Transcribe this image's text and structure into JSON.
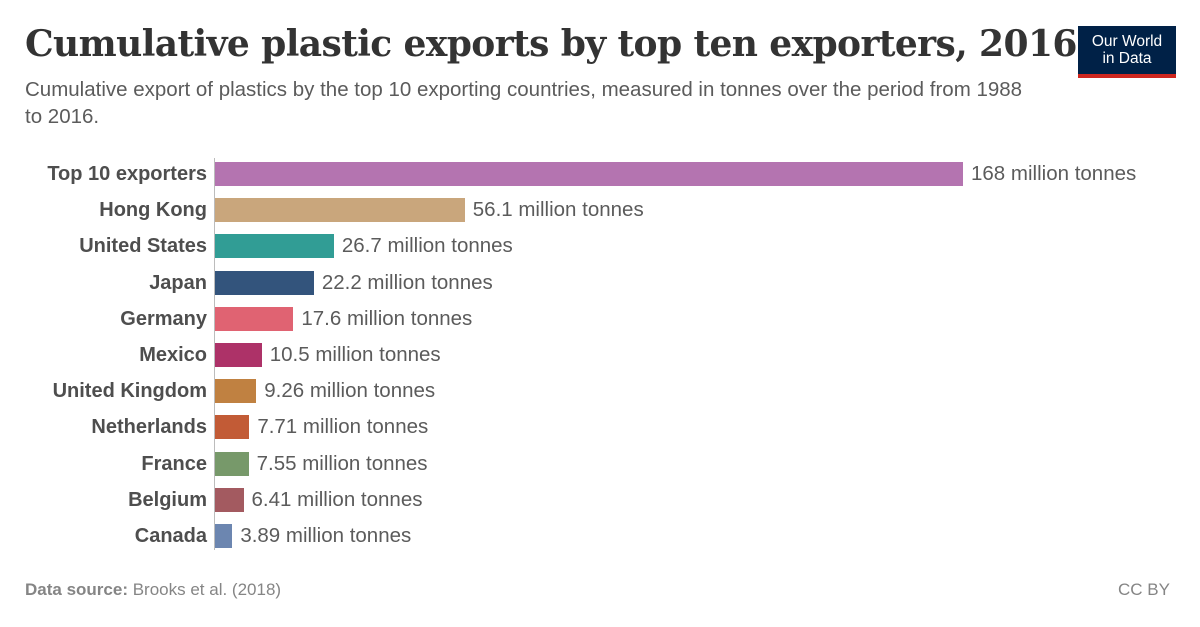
{
  "header": {
    "title": "Cumulative plastic exports by top ten exporters, 2016",
    "subtitle": "Cumulative export of plastics by the top 10 exporting countries, measured in tonnes over the period from 1988 to 2016.",
    "logo_line1": "Our World",
    "logo_line2": "in Data"
  },
  "footer": {
    "source_label": "Data source:",
    "source_value": "Brooks et al. (2018)",
    "license": "CC BY"
  },
  "chart_data": {
    "type": "bar",
    "orientation": "horizontal",
    "title": "Cumulative plastic exports by top ten exporters, 2016",
    "subtitle": "Cumulative export of plastics by the top 10 exporting countries, measured in tonnes over the period from 1988 to 2016.",
    "xlabel": "",
    "ylabel": "",
    "unit": "million tonnes",
    "grid": false,
    "legend": null,
    "categories": [
      "Top 10 exporters",
      "Hong Kong",
      "United States",
      "Japan",
      "Germany",
      "Mexico",
      "United Kingdom",
      "Netherlands",
      "France",
      "Belgium",
      "Canada"
    ],
    "values": [
      168,
      56.1,
      26.7,
      22.2,
      17.6,
      10.5,
      9.26,
      7.71,
      7.55,
      6.41,
      3.89
    ],
    "value_labels": [
      "168 million tonnes",
      "56.1 million tonnes",
      "26.7 million tonnes",
      "22.2 million tonnes",
      "17.6 million tonnes",
      "10.5 million tonnes",
      "9.26 million tonnes",
      "7.71 million tonnes",
      "7.55 million tonnes",
      "6.41 million tonnes",
      "3.89 million tonnes"
    ],
    "colors": [
      "#b474b0",
      "#c9a67c",
      "#319d95",
      "#33547c",
      "#e06372",
      "#ad3268",
      "#c08141",
      "#c25b36",
      "#77996a",
      "#a35a60",
      "#6c86b0"
    ],
    "xlim": [
      0,
      168
    ],
    "source": "Brooks et al. (2018)"
  }
}
